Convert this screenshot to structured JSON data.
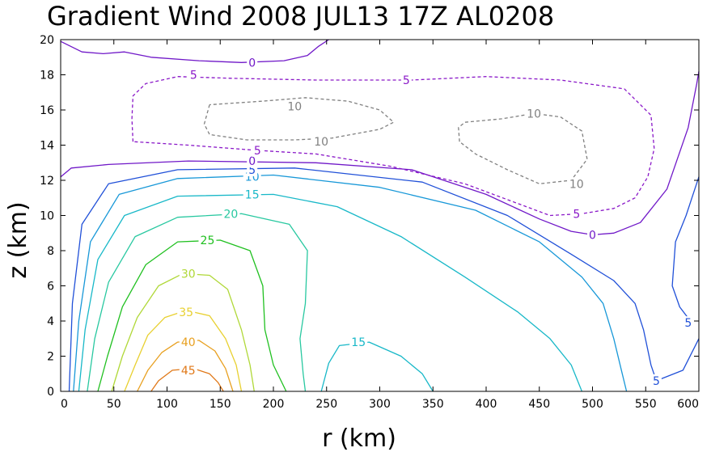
{
  "chart_data": {
    "type": "contour",
    "title": "Gradient Wind 2008 JUL13 17Z  AL0208",
    "xlabel": "r (km)",
    "ylabel": "z (km)",
    "xlim": [
      0,
      600
    ],
    "ylim": [
      0,
      20
    ],
    "xticks": [
      "0",
      "50",
      "100",
      "150",
      "200",
      "250",
      "300",
      "350",
      "400",
      "450",
      "500",
      "550",
      "600"
    ],
    "yticks": [
      "0",
      "2",
      "4",
      "6",
      "8",
      "10",
      "12",
      "14",
      "16",
      "18",
      "20"
    ],
    "contours": [
      {
        "level": "45",
        "color": "#e07818",
        "dashed": false,
        "labels": [
          {
            "text": "45",
            "x": 120,
            "y": 1.2
          }
        ],
        "lines": [
          [
            [
              85,
              0
            ],
            [
              92,
              0.6
            ],
            [
              105,
              1.2
            ],
            [
              125,
              1.3
            ],
            [
              140,
              1.0
            ],
            [
              148,
              0.5
            ],
            [
              153,
              0
            ]
          ]
        ]
      },
      {
        "level": "40",
        "color": "#e8a020",
        "dashed": false,
        "labels": [
          {
            "text": "40",
            "x": 120,
            "y": 2.8
          }
        ],
        "lines": [
          [
            [
              72,
              0
            ],
            [
              82,
              1.2
            ],
            [
              95,
              2.2
            ],
            [
              110,
              2.8
            ],
            [
              130,
              2.9
            ],
            [
              145,
              2.3
            ],
            [
              155,
              1.3
            ],
            [
              162,
              0
            ]
          ]
        ]
      },
      {
        "level": "35",
        "color": "#e8d030",
        "dashed": false,
        "labels": [
          {
            "text": "35",
            "x": 118,
            "y": 4.5
          }
        ],
        "lines": [
          [
            [
              60,
              0
            ],
            [
              70,
              1.5
            ],
            [
              82,
              3.2
            ],
            [
              98,
              4.2
            ],
            [
              118,
              4.6
            ],
            [
              140,
              4.3
            ],
            [
              155,
              3.0
            ],
            [
              165,
              1.5
            ],
            [
              170,
              0
            ]
          ]
        ]
      },
      {
        "level": "30",
        "color": "#b0d838",
        "dashed": false,
        "labels": [
          {
            "text": "30",
            "x": 120,
            "y": 6.7
          }
        ],
        "lines": [
          [
            [
              48,
              0
            ],
            [
              58,
              2.0
            ],
            [
              72,
              4.2
            ],
            [
              92,
              6.0
            ],
            [
              115,
              6.7
            ],
            [
              140,
              6.6
            ],
            [
              157,
              5.8
            ],
            [
              170,
              3.5
            ],
            [
              178,
              1.5
            ],
            [
              182,
              0
            ]
          ]
        ]
      },
      {
        "level": "25",
        "color": "#20c020",
        "dashed": false,
        "labels": [
          {
            "text": "25",
            "x": 138,
            "y": 8.6
          }
        ],
        "lines": [
          [
            [
              35,
              0
            ],
            [
              44,
              2.0
            ],
            [
              58,
              4.8
            ],
            [
              80,
              7.2
            ],
            [
              110,
              8.5
            ],
            [
              150,
              8.6
            ],
            [
              178,
              8.0
            ],
            [
              190,
              6.0
            ],
            [
              192,
              3.5
            ],
            [
              200,
              1.5
            ],
            [
              212,
              0
            ]
          ]
        ]
      },
      {
        "level": "20",
        "color": "#28c8a0",
        "dashed": false,
        "labels": [
          {
            "text": "20",
            "x": 160,
            "y": 10.1
          }
        ],
        "lines": [
          [
            [
              25,
              0
            ],
            [
              32,
              3.0
            ],
            [
              45,
              6.2
            ],
            [
              70,
              8.8
            ],
            [
              110,
              9.9
            ],
            [
              170,
              10.1
            ],
            [
              215,
              9.5
            ],
            [
              232,
              8.0
            ],
            [
              230,
              5.0
            ],
            [
              225,
              3.0
            ],
            [
              228,
              1.0
            ],
            [
              230,
              0
            ]
          ]
        ]
      },
      {
        "level": "15",
        "color": "#18b8c8",
        "dashed": false,
        "labels": [
          {
            "text": "15",
            "x": 180,
            "y": 11.2
          },
          {
            "text": "15",
            "x": 280,
            "y": 2.8
          }
        ],
        "lines": [
          [
            [
              17,
              0
            ],
            [
              23,
              3.5
            ],
            [
              35,
              7.5
            ],
            [
              60,
              10.0
            ],
            [
              110,
              11.1
            ],
            [
              200,
              11.2
            ],
            [
              260,
              10.5
            ],
            [
              320,
              8.8
            ],
            [
              380,
              6.5
            ],
            [
              430,
              4.5
            ],
            [
              460,
              3.0
            ],
            [
              480,
              1.5
            ],
            [
              490,
              0
            ]
          ],
          [
            [
              245,
              0
            ],
            [
              252,
              1.6
            ],
            [
              262,
              2.6
            ],
            [
              290,
              2.8
            ],
            [
              320,
              2.0
            ],
            [
              340,
              1.0
            ],
            [
              350,
              0
            ]
          ]
        ]
      },
      {
        "level": "10",
        "color": "#1898d8",
        "dashed": false,
        "labels": [
          {
            "text": "10",
            "x": 180,
            "y": 12.2
          }
        ],
        "lines": [
          [
            [
              12,
              0
            ],
            [
              17,
              4.0
            ],
            [
              28,
              8.5
            ],
            [
              55,
              11.2
            ],
            [
              110,
              12.1
            ],
            [
              200,
              12.3
            ],
            [
              300,
              11.6
            ],
            [
              390,
              10.3
            ],
            [
              450,
              8.5
            ],
            [
              490,
              6.5
            ],
            [
              510,
              5.0
            ],
            [
              520,
              3.0
            ],
            [
              528,
              1.0
            ],
            [
              532,
              0
            ]
          ]
        ]
      },
      {
        "level": "5",
        "color": "#2050d8",
        "dashed": false,
        "labels": [
          {
            "text": "5",
            "x": 180,
            "y": 12.6
          },
          {
            "text": "5",
            "x": 560,
            "y": 0.6
          },
          {
            "text": "5",
            "x": 590,
            "y": 3.9
          }
        ],
        "lines": [
          [
            [
              8,
              0
            ],
            [
              11,
              5.0
            ],
            [
              20,
              9.5
            ],
            [
              45,
              11.8
            ],
            [
              110,
              12.6
            ],
            [
              220,
              12.7
            ],
            [
              340,
              11.9
            ],
            [
              420,
              10.0
            ],
            [
              480,
              7.8
            ],
            [
              520,
              6.3
            ],
            [
              540,
              5.0
            ],
            [
              548,
              3.5
            ],
            [
              555,
              1.5
            ],
            [
              560,
              0.6
            ],
            [
              585,
              1.2
            ],
            [
              600,
              3.0
            ]
          ],
          [
            [
              600,
              12.2
            ],
            [
              588,
              10.0
            ],
            [
              578,
              8.5
            ],
            [
              575,
              6.0
            ],
            [
              582,
              4.8
            ],
            [
              592,
              4.0
            ]
          ]
        ]
      },
      {
        "level": "0",
        "color": "#7018c8",
        "dashed": false,
        "labels": [
          {
            "text": "0",
            "x": 180,
            "y": 13.1
          },
          {
            "text": "0",
            "x": 180,
            "y": 18.7
          },
          {
            "text": "0",
            "x": 500,
            "y": 8.9
          }
        ],
        "lines": [
          [
            [
              0,
              12.2
            ],
            [
              10,
              12.7
            ],
            [
              45,
              12.9
            ],
            [
              120,
              13.1
            ],
            [
              240,
              13.0
            ],
            [
              330,
              12.6
            ],
            [
              400,
              11.2
            ],
            [
              450,
              9.8
            ],
            [
              480,
              9.1
            ],
            [
              500,
              8.9
            ],
            [
              520,
              9.0
            ],
            [
              545,
              9.6
            ],
            [
              570,
              11.5
            ],
            [
              590,
              15.0
            ],
            [
              598,
              17.5
            ],
            [
              600,
              18.2
            ]
          ],
          [
            [
              0,
              19.9
            ],
            [
              20,
              19.3
            ],
            [
              40,
              19.2
            ],
            [
              60,
              19.3
            ],
            [
              85,
              19.0
            ],
            [
              130,
              18.8
            ],
            [
              170,
              18.7
            ],
            [
              210,
              18.8
            ],
            [
              232,
              19.1
            ],
            [
              242,
              19.6
            ],
            [
              252,
              20.0
            ]
          ]
        ]
      },
      {
        "level": "-5",
        "color": "#8a18c8",
        "dashed": true,
        "labels": [
          {
            "text": "5",
            "x": 125,
            "y": 18.0
          },
          {
            "text": "5",
            "x": 325,
            "y": 17.7
          },
          {
            "text": "5",
            "x": 185,
            "y": 13.7
          },
          {
            "text": "5",
            "x": 485,
            "y": 10.1
          }
        ],
        "lines": [
          [
            [
              68,
              14.2
            ],
            [
              67,
              15.5
            ],
            [
              68,
              16.8
            ],
            [
              80,
              17.5
            ],
            [
              110,
              17.9
            ],
            [
              160,
              17.8
            ],
            [
              240,
              17.7
            ],
            [
              330,
              17.7
            ],
            [
              400,
              17.9
            ],
            [
              470,
              17.7
            ],
            [
              530,
              17.2
            ],
            [
              555,
              15.7
            ],
            [
              558,
              13.8
            ],
            [
              552,
              12.2
            ],
            [
              540,
              11.0
            ],
            [
              520,
              10.4
            ],
            [
              490,
              10.1
            ],
            [
              460,
              10.0
            ],
            [
              420,
              10.9
            ],
            [
              380,
              11.8
            ],
            [
              310,
              12.8
            ],
            [
              240,
              13.5
            ],
            [
              185,
              13.7
            ],
            [
              120,
              14.0
            ],
            [
              68,
              14.2
            ]
          ]
        ]
      },
      {
        "level": "-10",
        "color": "#808080",
        "dashed": true,
        "labels": [
          {
            "text": "10",
            "x": 220,
            "y": 16.2
          },
          {
            "text": "10",
            "x": 245,
            "y": 14.2
          },
          {
            "text": "10",
            "x": 445,
            "y": 15.8
          },
          {
            "text": "10",
            "x": 485,
            "y": 11.8
          }
        ],
        "lines": [
          [
            [
              140,
              16.3
            ],
            [
              135,
              15.2
            ],
            [
              140,
              14.6
            ],
            [
              175,
              14.3
            ],
            [
              220,
              14.3
            ],
            [
              255,
              14.4
            ],
            [
              300,
              14.9
            ],
            [
              313,
              15.3
            ],
            [
              300,
              16.0
            ],
            [
              270,
              16.5
            ],
            [
              230,
              16.7
            ],
            [
              190,
              16.5
            ],
            [
              140,
              16.3
            ]
          ],
          [
            [
              375,
              14.2
            ],
            [
              374,
              15.0
            ],
            [
              380,
              15.3
            ],
            [
              415,
              15.5
            ],
            [
              445,
              15.8
            ],
            [
              470,
              15.6
            ],
            [
              490,
              14.8
            ],
            [
              495,
              13.2
            ],
            [
              480,
              12.0
            ],
            [
              450,
              11.8
            ],
            [
              420,
              12.6
            ],
            [
              390,
              13.5
            ],
            [
              375,
              14.2
            ]
          ]
        ]
      }
    ]
  }
}
